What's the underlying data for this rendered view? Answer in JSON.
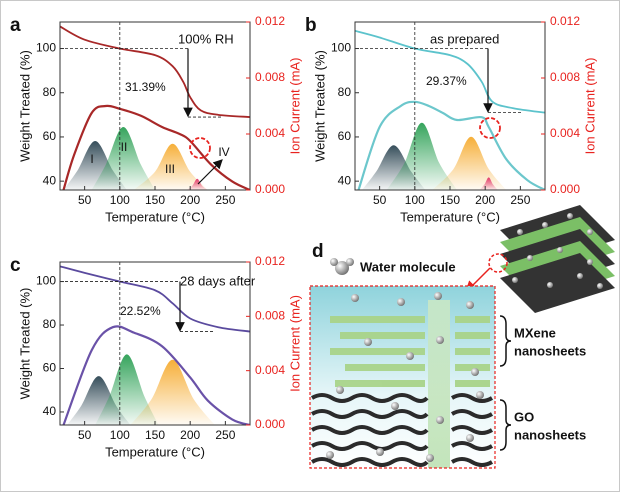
{
  "chart_data": [
    {
      "type": "line",
      "panel": "a",
      "xlabel": "Temperature (°C)",
      "ylabel": "Weight Treated (%)",
      "y2label": "Ion Current (mA)",
      "y2_color": "#e8231f",
      "xlim": [
        15,
        285
      ],
      "xticks": [
        50,
        100,
        150,
        200,
        250
      ],
      "ylim": [
        36,
        112
      ],
      "yticks": [
        40,
        60,
        80,
        100
      ],
      "y2lim": [
        0,
        0.012
      ],
      "y2ticks": [
        {
          "value": 0,
          "label": "0.000"
        },
        0.004,
        0.008,
        0.012
      ],
      "series": [
        {
          "axis": "y",
          "color": "#a82828",
          "x": [
            15,
            50,
            100,
            150,
            175,
            190,
            200,
            215,
            240,
            285
          ],
          "values": [
            110,
            104,
            100,
            97,
            92,
            85,
            78,
            72,
            70,
            69
          ]
        },
        {
          "axis": "y2",
          "color": "#a82828",
          "x": [
            20,
            35,
            60,
            80,
            100,
            130,
            160,
            185,
            200,
            230,
            260,
            285
          ],
          "values": [
            0,
            0.0025,
            0.0055,
            0.006,
            0.0058,
            0.0053,
            0.0045,
            0.004,
            0.0035,
            0.0018,
            0.0006,
            0
          ]
        }
      ],
      "peaks": [
        {
          "color": "#1f3a48",
          "x": [
            20,
            40,
            65,
            90,
            110
          ],
          "values": [
            0,
            0.0014,
            0.0035,
            0.0014,
            0
          ]
        },
        {
          "color": "#1f9a4a",
          "x": [
            60,
            80,
            105,
            130,
            150
          ],
          "values": [
            0,
            0.0018,
            0.0045,
            0.0018,
            0
          ]
        },
        {
          "color": "#f5a623",
          "x": [
            120,
            150,
            175,
            200,
            225
          ],
          "values": [
            0,
            0.0013,
            0.0033,
            0.0013,
            0
          ]
        },
        {
          "color": "#e0245e",
          "x": [
            195,
            203,
            210,
            217,
            225
          ],
          "values": [
            0,
            0.0003,
            0.0008,
            0.0003,
            0
          ]
        }
      ],
      "annotations": [
        "100% RH",
        "31.39%",
        "I",
        "II",
        "III",
        "IV"
      ]
    },
    {
      "type": "line",
      "panel": "b",
      "xlabel": "Temperature (°C)",
      "ylabel": "Weight Treated (%)",
      "y2label": "Ion Current (mA)",
      "y2_color": "#e8231f",
      "xlim": [
        15,
        285
      ],
      "xticks": [
        50,
        100,
        150,
        200,
        250
      ],
      "ylim": [
        36,
        112
      ],
      "yticks": [
        40,
        60,
        80,
        100
      ],
      "y2lim": [
        0,
        0.012
      ],
      "y2ticks": [
        {
          "value": 0,
          "label": "0.000"
        },
        0.004,
        0.008,
        0.012
      ],
      "series": [
        {
          "axis": "y",
          "color": "#5cc3cc",
          "x": [
            15,
            50,
            100,
            150,
            175,
            195,
            210,
            240,
            285
          ],
          "values": [
            108,
            105,
            100,
            97,
            93,
            85,
            76,
            73,
            71
          ]
        },
        {
          "axis": "y2",
          "color": "#6cc7cc",
          "x": [
            20,
            50,
            80,
            100,
            120,
            140,
            160,
            195,
            205,
            230,
            260,
            285
          ],
          "values": [
            0,
            0.0045,
            0.006,
            0.0063,
            0.006,
            0.0055,
            0.005,
            0.0052,
            0.0045,
            0.0022,
            0.0007,
            0
          ]
        }
      ],
      "peaks": [
        {
          "color": "#1f3a48",
          "x": [
            25,
            45,
            70,
            95,
            115
          ],
          "values": [
            0,
            0.0013,
            0.0032,
            0.0013,
            0
          ]
        },
        {
          "color": "#1f9a4a",
          "x": [
            60,
            85,
            110,
            135,
            160
          ],
          "values": [
            0,
            0.0019,
            0.0048,
            0.0019,
            0
          ]
        },
        {
          "color": "#f5a623",
          "x": [
            125,
            155,
            180,
            205,
            230
          ],
          "values": [
            0,
            0.0015,
            0.0038,
            0.0015,
            0
          ]
        },
        {
          "color": "#e0245e",
          "x": [
            192,
            199,
            205,
            211,
            218
          ],
          "values": [
            0,
            0.0004,
            0.0009,
            0.0004,
            0
          ]
        }
      ],
      "annotations": [
        "as prepared",
        "29.37%"
      ]
    },
    {
      "type": "line",
      "panel": "c",
      "xlabel": "Temperature (°C)",
      "ylabel": "Weight Treated (%)",
      "y2label": "Ion Current (mA)",
      "y2_color": "#e8231f",
      "xlim": [
        15,
        285
      ],
      "xticks": [
        50,
        100,
        150,
        200,
        250
      ],
      "ylim": [
        34,
        109
      ],
      "yticks": [
        40,
        60,
        80,
        100
      ],
      "y2lim": [
        0,
        0.012
      ],
      "y2ticks": [
        {
          "value": 0,
          "label": "0.000"
        },
        0.004,
        0.008,
        0.012
      ],
      "series": [
        {
          "axis": "y",
          "color": "#5a4a9e",
          "x": [
            15,
            50,
            100,
            150,
            175,
            200,
            240,
            285
          ],
          "values": [
            107,
            104,
            100,
            96,
            90,
            83,
            79,
            77
          ]
        },
        {
          "axis": "y2",
          "color": "#6a52a8",
          "x": [
            20,
            60,
            90,
            120,
            160,
            200,
            225,
            260,
            285
          ],
          "values": [
            0,
            0.0055,
            0.0072,
            0.0068,
            0.0058,
            0.0035,
            0.0018,
            0.0004,
            0
          ]
        }
      ],
      "peaks": [
        {
          "color": "#1f3a48",
          "x": [
            25,
            45,
            70,
            95,
            115
          ],
          "values": [
            0,
            0.0014,
            0.0036,
            0.0014,
            0
          ]
        },
        {
          "color": "#1f9a4a",
          "x": [
            65,
            85,
            110,
            135,
            155
          ],
          "values": [
            0,
            0.0021,
            0.0052,
            0.0021,
            0
          ]
        },
        {
          "color": "#f5a623",
          "x": [
            115,
            145,
            175,
            205,
            235
          ],
          "values": [
            0,
            0.0019,
            0.0048,
            0.0019,
            0
          ]
        }
      ],
      "annotations": [
        "28 days after",
        "22.52%"
      ]
    }
  ],
  "diagram": {
    "panel": "d",
    "legend": "Water molecule",
    "mxene": [
      "MXene",
      "nanosheets"
    ],
    "go": [
      "GO",
      "nanosheets"
    ]
  }
}
